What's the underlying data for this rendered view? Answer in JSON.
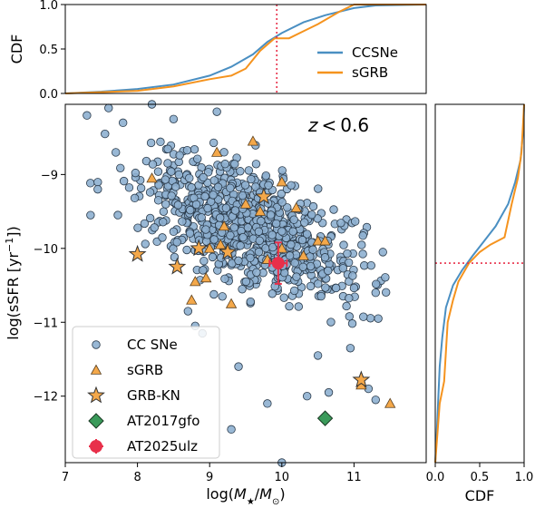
{
  "chart_data": [
    {
      "panel": "main",
      "type": "scatter",
      "xlabel_parts": [
        "log(",
        "M",
        "★",
        "/",
        "M",
        "⊙",
        ")"
      ],
      "ylabel_parts": [
        "log(sSFR [yr",
        "−1",
        "])"
      ],
      "annotation": {
        "var": "z",
        "op": "<",
        "val": "0.6"
      },
      "xlim": [
        7,
        12
      ],
      "ylim": [
        -12.9,
        -8.05
      ],
      "xticks": [
        "7",
        "8",
        "9",
        "10",
        "11"
      ],
      "yticks": [
        "−9",
        "−10",
        "−11",
        "−12"
      ],
      "legend_position": "lower-left",
      "series": [
        {
          "name": "CC SNe",
          "marker": "circle",
          "color": "#8eb0d0",
          "seed": 7,
          "count": 860,
          "center": {
            "mass": 9.6,
            "ssfr": -9.75
          },
          "slope": -0.38,
          "spread": {
            "mass": 0.75,
            "ssfr": 0.38
          },
          "outliers": [
            [
              7.3,
              -8.2
            ],
            [
              7.6,
              -8.1
            ],
            [
              8.2,
              -8.05
            ],
            [
              9.1,
              -8.15
            ],
            [
              7.8,
              -8.3
            ],
            [
              8.5,
              -8.25
            ],
            [
              8.8,
              -11.05
            ],
            [
              8.9,
              -11.15
            ],
            [
              9.4,
              -11.6
            ],
            [
              9.8,
              -12.1
            ],
            [
              10.35,
              -12.0
            ],
            [
              10.5,
              -11.45
            ],
            [
              10.65,
              -11.95
            ],
            [
              10.95,
              -11.35
            ],
            [
              11.3,
              -12.05
            ],
            [
              10.0,
              -12.9
            ],
            [
              9.3,
              -12.45
            ],
            [
              8.7,
              -10.85
            ],
            [
              11.2,
              -11.9
            ],
            [
              7.45,
              -9.2
            ],
            [
              7.35,
              -9.55
            ],
            [
              7.7,
              -8.7
            ],
            [
              7.55,
              -8.45
            ],
            [
              11.4,
              -10.05
            ],
            [
              11.3,
              -10.6
            ]
          ]
        },
        {
          "name": "sGRB",
          "marker": "triangle",
          "color": "#f4a84a",
          "points": [
            [
              9.6,
              -8.55
            ],
            [
              9.1,
              -8.7
            ],
            [
              8.2,
              -9.05
            ],
            [
              9.5,
              -9.4
            ],
            [
              9.7,
              -9.5
            ],
            [
              9.2,
              -9.7
            ],
            [
              9.0,
              -10.0
            ],
            [
              8.8,
              -10.45
            ],
            [
              8.75,
              -10.7
            ],
            [
              9.3,
              -10.75
            ],
            [
              10.0,
              -10.0
            ],
            [
              10.3,
              -10.1
            ],
            [
              10.5,
              -9.9
            ],
            [
              10.6,
              -9.9
            ],
            [
              10.2,
              -9.45
            ],
            [
              10.0,
              -9.1
            ],
            [
              11.1,
              -11.85
            ],
            [
              11.5,
              -12.1
            ],
            [
              9.8,
              -10.15
            ],
            [
              9.15,
              -9.95
            ],
            [
              8.95,
              -10.4
            ]
          ]
        },
        {
          "name": "GRB-KN",
          "marker": "star",
          "color": "#f4a84a",
          "points": [
            [
              8.0,
              -10.08
            ],
            [
              8.55,
              -10.25
            ],
            [
              8.85,
              -10.0
            ],
            [
              9.25,
              -10.05
            ],
            [
              9.75,
              -9.3
            ],
            [
              11.1,
              -11.78
            ]
          ]
        },
        {
          "name": "AT2017gfo",
          "marker": "diamond",
          "color": "#3a9a5a",
          "points": [
            [
              10.6,
              -12.3
            ]
          ]
        },
        {
          "name": "AT2025ulz",
          "marker": "errorpoint",
          "color": "#e8304a",
          "points": [
            [
              9.95,
              -10.2
            ]
          ],
          "xerr": 0.12,
          "yerr": 0.28
        }
      ]
    },
    {
      "panel": "top",
      "type": "line",
      "ylabel": "CDF",
      "xlim": [
        7,
        12
      ],
      "ylim": [
        0,
        1
      ],
      "yticks": [
        "0.0",
        "0.5",
        "1.0"
      ],
      "vline_x": 9.93,
      "legend_position": "lower-right",
      "series": [
        {
          "name": "CCSNe",
          "color": "#4a8fc2",
          "points": [
            [
              7.0,
              0.0
            ],
            [
              7.5,
              0.02
            ],
            [
              8.0,
              0.05
            ],
            [
              8.5,
              0.1
            ],
            [
              9.0,
              0.2
            ],
            [
              9.3,
              0.3
            ],
            [
              9.6,
              0.44
            ],
            [
              9.8,
              0.58
            ],
            [
              10.0,
              0.68
            ],
            [
              10.3,
              0.8
            ],
            [
              10.6,
              0.88
            ],
            [
              11.0,
              0.96
            ],
            [
              11.3,
              0.99
            ],
            [
              12.0,
              1.0
            ]
          ]
        },
        {
          "name": "sGRB",
          "color": "#f5931e",
          "points": [
            [
              7.0,
              0.0
            ],
            [
              8.0,
              0.03
            ],
            [
              8.5,
              0.08
            ],
            [
              9.0,
              0.16
            ],
            [
              9.3,
              0.2
            ],
            [
              9.5,
              0.28
            ],
            [
              9.7,
              0.48
            ],
            [
              9.9,
              0.62
            ],
            [
              10.1,
              0.62
            ],
            [
              10.3,
              0.7
            ],
            [
              10.5,
              0.78
            ],
            [
              10.8,
              0.92
            ],
            [
              11.0,
              1.0
            ],
            [
              12.0,
              1.0
            ]
          ]
        }
      ]
    },
    {
      "panel": "right",
      "type": "line",
      "xlabel": "CDF",
      "xlim": [
        0,
        1
      ],
      "ylim": [
        -12.9,
        -8.05
      ],
      "xticks": [
        "0.0",
        "0.5",
        "1.0"
      ],
      "hline_y": -10.2,
      "series": [
        {
          "name": "CCSNe",
          "color": "#4a8fc2",
          "points": [
            [
              0.0,
              -12.9
            ],
            [
              0.02,
              -12.4
            ],
            [
              0.05,
              -11.6
            ],
            [
              0.08,
              -11.2
            ],
            [
              0.12,
              -10.8
            ],
            [
              0.2,
              -10.5
            ],
            [
              0.3,
              -10.3
            ],
            [
              0.42,
              -10.1
            ],
            [
              0.55,
              -9.9
            ],
            [
              0.68,
              -9.7
            ],
            [
              0.82,
              -9.4
            ],
            [
              0.9,
              -9.1
            ],
            [
              0.96,
              -8.8
            ],
            [
              0.99,
              -8.4
            ],
            [
              1.0,
              -8.05
            ]
          ]
        },
        {
          "name": "sGRB",
          "color": "#f5931e",
          "points": [
            [
              0.0,
              -12.9
            ],
            [
              0.05,
              -12.1
            ],
            [
              0.1,
              -11.8
            ],
            [
              0.14,
              -11.0
            ],
            [
              0.2,
              -10.7
            ],
            [
              0.26,
              -10.45
            ],
            [
              0.38,
              -10.2
            ],
            [
              0.5,
              -10.05
            ],
            [
              0.62,
              -9.95
            ],
            [
              0.78,
              -9.85
            ],
            [
              0.86,
              -9.4
            ],
            [
              0.93,
              -9.05
            ],
            [
              0.97,
              -8.7
            ],
            [
              1.0,
              -8.05
            ]
          ]
        }
      ]
    }
  ]
}
